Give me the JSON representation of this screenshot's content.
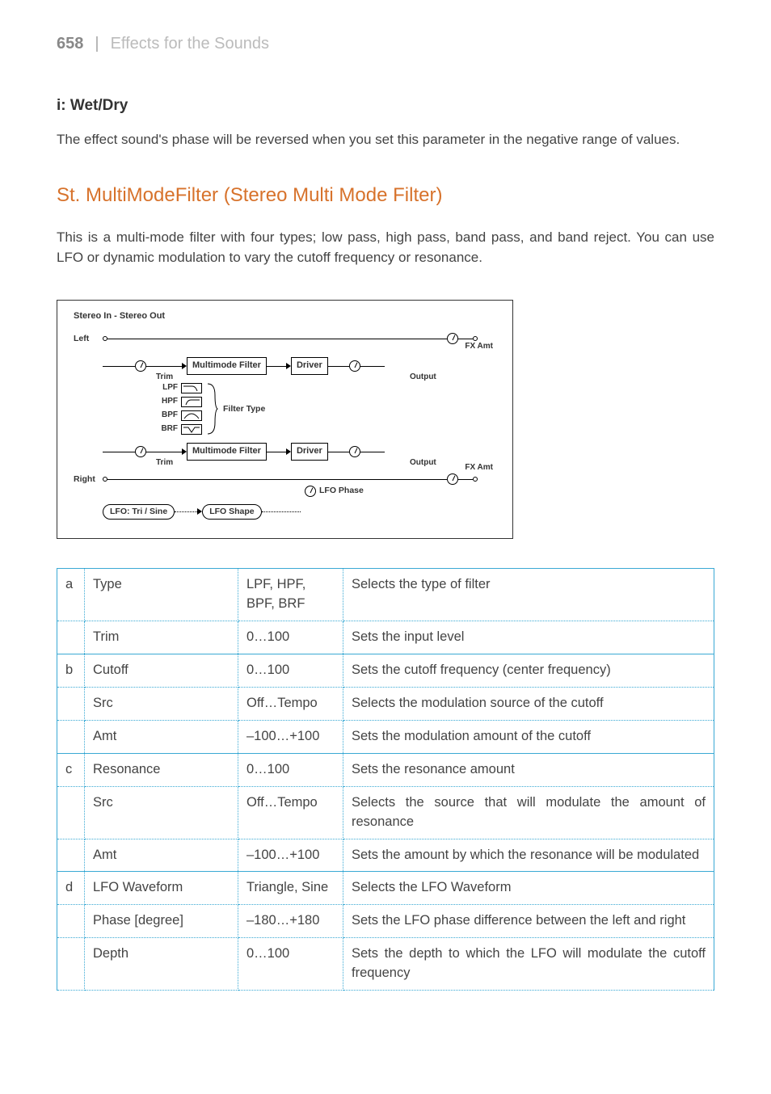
{
  "header": {
    "page_number": "658",
    "separator": "|",
    "section": "Effects for the Sounds"
  },
  "subsection": {
    "title": "i: Wet/Dry",
    "body": "The effect sound's phase will be reversed when you set this parameter in the negative range of values."
  },
  "effect": {
    "title": "St. MultiModeFilter (Stereo Multi Mode Filter)",
    "description": "This is a multi-mode filter with four types; low pass, high pass, band pass, and band reject. You can use LFO or dynamic modulation to vary the cutoff frequency or resonance."
  },
  "diagram": {
    "io_title": "Stereo In - Stereo Out",
    "left": "Left",
    "right": "Right",
    "trim": "Trim",
    "mmf": "Multimode Filter",
    "driver": "Driver",
    "output": "Output",
    "fx_amt": "FX Amt",
    "filter_type": "Filter Type",
    "filters": [
      "LPF",
      "HPF",
      "BPF",
      "BRF"
    ],
    "lfo_src": "LFO: Tri / Sine",
    "lfo_shape": "LFO Shape",
    "lfo_phase": "LFO Phase"
  },
  "table": {
    "rows": [
      {
        "group": "a",
        "param": "Type",
        "range": "LPF, HPF, BPF, BRF",
        "desc": "Selects the type of filter",
        "first": true
      },
      {
        "group": "",
        "param": "Trim",
        "range": "0…100",
        "desc": "Sets the input level",
        "first": false
      },
      {
        "group": "b",
        "param": "Cutoff",
        "range": "0…100",
        "desc": "Sets the cutoff frequency (center frequency)",
        "first": true
      },
      {
        "group": "",
        "param": "Src",
        "range": "Off…Tempo",
        "desc": "Selects the modulation source of the cutoff",
        "first": false
      },
      {
        "group": "",
        "param": "Amt",
        "range": "–100…+100",
        "desc": "Sets the modulation amount of the cutoff",
        "first": false
      },
      {
        "group": "c",
        "param": "Resonance",
        "range": "0…100",
        "desc": "Sets the resonance amount",
        "first": true
      },
      {
        "group": "",
        "param": "Src",
        "range": "Off…Tempo",
        "desc": "Selects the source that will modulate the amount of resonance",
        "first": false
      },
      {
        "group": "",
        "param": "Amt",
        "range": "–100…+100",
        "desc": "Sets the amount by which the resonance will be modulated",
        "first": false
      },
      {
        "group": "d",
        "param": "LFO Waveform",
        "range": "Triangle, Sine",
        "desc": "Selects the LFO Waveform",
        "first": true
      },
      {
        "group": "",
        "param": "Phase [degree]",
        "range": "–180…+180",
        "desc": "Sets the LFO phase difference between the left and right",
        "first": false
      },
      {
        "group": "",
        "param": "Depth",
        "range": "0…100",
        "desc": "Sets the depth to which the LFO will modulate the cutoff frequency",
        "first": false
      }
    ]
  },
  "style": {
    "accent_color": "#d7722b",
    "table_border_color": "#3aa9d4"
  }
}
